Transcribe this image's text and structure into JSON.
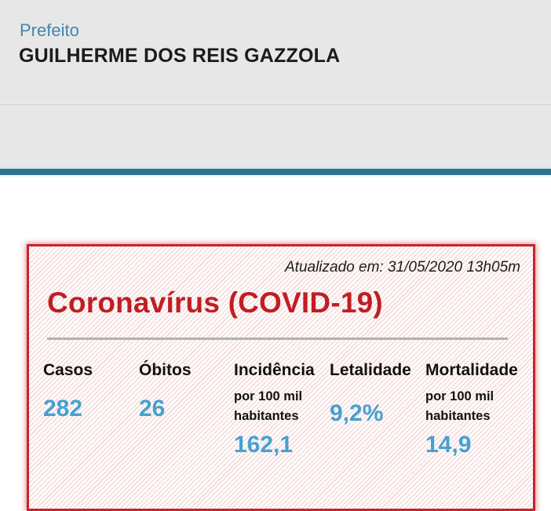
{
  "header": {
    "role_label": "Prefeito",
    "name": "GUILHERME DOS REIS GAZZOLA",
    "bg_color": "#e7e7e7",
    "role_color": "#4587aa"
  },
  "accent_bar": {
    "color": "#2d7391"
  },
  "covid_card": {
    "updated_text": "Atualizado em: 31/05/2020 13h05m",
    "title": "Coronavírus (COVID-19)",
    "title_color": "#c01e24",
    "border_color": "#c1272d",
    "value_color": "#47a1d0",
    "stats": [
      {
        "label": "Casos",
        "sublabel": "",
        "value": "282"
      },
      {
        "label": "Óbitos",
        "sublabel": "",
        "value": "26"
      },
      {
        "label": "Incidência",
        "sublabel": "por 100 mil habitantes",
        "value": "162,1"
      },
      {
        "label": "Letalidade",
        "sublabel": "",
        "value": "9,2%"
      },
      {
        "label": "Mortalidade",
        "sublabel": "por 100 mil habitantes",
        "value": "14,9"
      }
    ]
  }
}
